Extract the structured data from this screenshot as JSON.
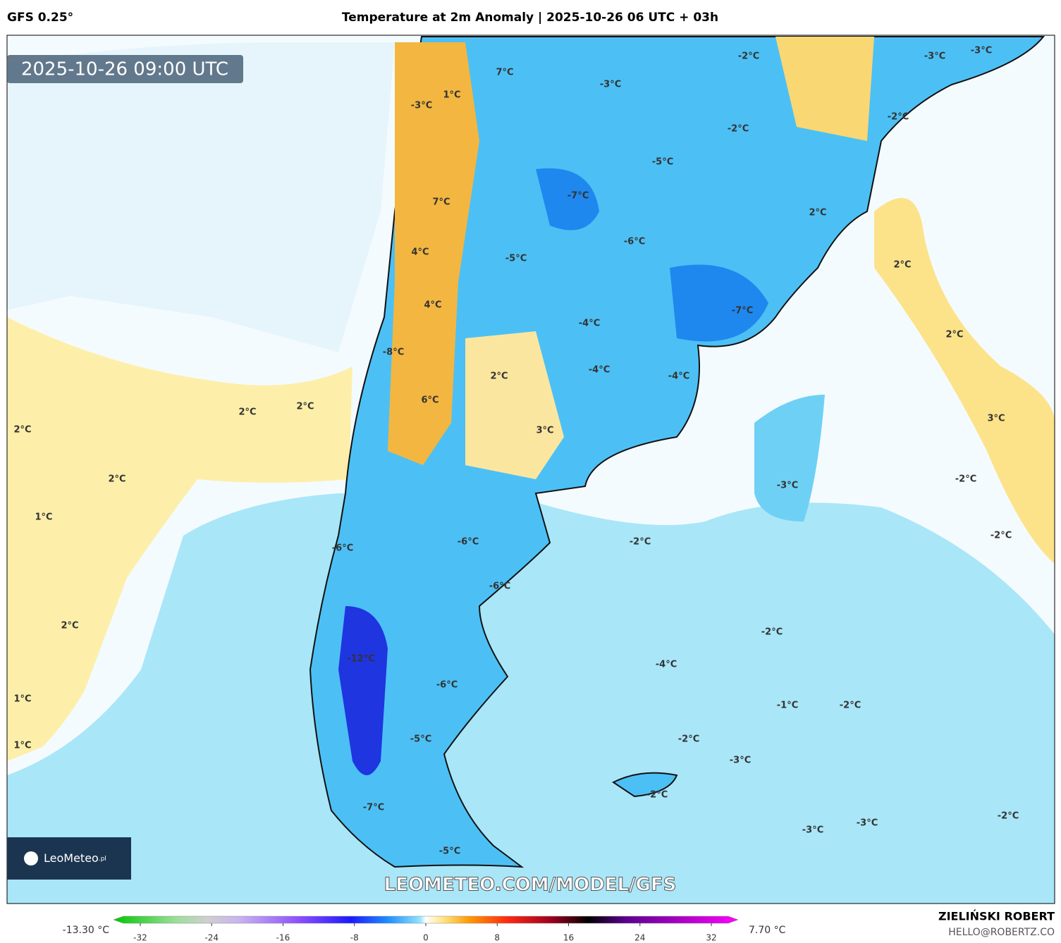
{
  "header": {
    "model": "GFS 0.25°",
    "title": "Temperature at 2m Anomaly | 2025-10-26 06 UTC + 03h"
  },
  "map": {
    "valid_time": "2025-10-26 09:00 UTC",
    "watermark": "LEOMETEO.COM/MODEL/GFS",
    "logo": {
      "name": "LeoMeteo",
      "suffix": ".pl"
    },
    "contour_labels": [
      "7°C",
      "1°C",
      "-3°C",
      "-2°C",
      "-3°C",
      "-3°C",
      "-3°C",
      "-2°C",
      "-2°C",
      "-5°C",
      "-7°C",
      "7°C",
      "2°C",
      "-6°C",
      "4°C",
      "-5°C",
      "2°C",
      "-7°C",
      "4°C",
      "-4°C",
      "2°C",
      "-8°C",
      "-4°C",
      "-4°C",
      "2°C",
      "6°C",
      "2°C",
      "2°C",
      "3°C",
      "3°C",
      "2°C",
      "2°C",
      "-3°C",
      "-2°C",
      "1°C",
      "-2°C",
      "-2°C",
      "-6°C",
      "-6°C",
      "-6°C",
      "2°C",
      "-2°C",
      "-12°C",
      "-4°C",
      "-6°C",
      "1°C",
      "-1°C",
      "-2°C",
      "1°C",
      "-5°C",
      "-2°C",
      "-3°C",
      "-2°C",
      "-7°C",
      "-2°C",
      "-3°C",
      "-3°C",
      "-5°C"
    ]
  },
  "colorbar": {
    "min_label": "-13.30 °C",
    "max_label": "7.70 °C",
    "range": [
      -35,
      35
    ],
    "ticks": [
      -32,
      -24,
      -16,
      -8,
      0,
      8,
      16,
      24,
      32
    ]
  },
  "credits": {
    "author": "ZIELIŃSKI ROBERT",
    "email": "HELLO@ROBERTZ.CO"
  }
}
